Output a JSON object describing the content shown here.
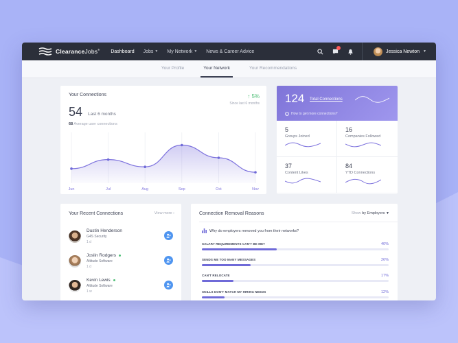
{
  "colors": {
    "accent": "#7c71dd",
    "topbar": "#2b2f3a",
    "success": "#53c07a",
    "action_blue": "#4f95f0",
    "notification": "#ff5a5a"
  },
  "app": {
    "logo_part1": "Clearance",
    "logo_part2": "Jobs",
    "logo_mark": "®",
    "nav": [
      {
        "label": "Dashboard",
        "caret": false
      },
      {
        "label": "Jobs",
        "caret": true
      },
      {
        "label": "My Network",
        "caret": true
      },
      {
        "label": "News & Career Advice",
        "caret": false
      }
    ],
    "user_name": "Jessica Newton",
    "icons": [
      "search-icon",
      "chat-icon",
      "bell-icon",
      "chevron-down-icon"
    ]
  },
  "subnav": {
    "tabs": [
      {
        "label": "Your Profile",
        "active": false
      },
      {
        "label": "Your Network",
        "active": true
      },
      {
        "label": "Your Recommendations",
        "active": false
      }
    ]
  },
  "connections": {
    "title": "Your Connections",
    "change": "5%",
    "change_icon": "arrow-up-icon",
    "since": "Since last 6 months",
    "count": "54",
    "count_label": "Last 6 months",
    "avg_value": "68",
    "avg_label": "Average user connections"
  },
  "chart_data": {
    "type": "line",
    "categories": [
      "Jun",
      "Jul",
      "Aug",
      "Sep",
      "Oct",
      "Nov"
    ],
    "x": [
      "Jun",
      "Jul",
      "Aug",
      "Sep",
      "Oct",
      "Nov"
    ],
    "series": [
      {
        "values": [
          2,
          7,
          3,
          15,
          8,
          0
        ]
      }
    ],
    "ylim": [
      -6,
      22
    ],
    "grid": "vertical",
    "smooth": true,
    "fill": "area"
  },
  "total": {
    "count": "124",
    "label": "Total Connections",
    "hint": "How to get more connections?",
    "hint_icon": "info-icon"
  },
  "stats": [
    {
      "value": "5",
      "label": "Groups Joined"
    },
    {
      "value": "16",
      "label": "Companies Followed"
    },
    {
      "value": "37",
      "label": "Content Likes"
    },
    {
      "value": "84",
      "label": "YTD Connections"
    }
  ],
  "recent": {
    "title": "Your Recent Connections",
    "view_more": "View more",
    "people": [
      {
        "name": "Dustin Henderson",
        "company": "G4S Security",
        "time": "1 d",
        "online": false
      },
      {
        "name": "Joslin Rodgers",
        "company": "Altitude Software",
        "time": "1 d",
        "online": true
      },
      {
        "name": "Kevin Lewis",
        "company": "Altitude Software",
        "time": "1 w",
        "online": true
      }
    ]
  },
  "removal": {
    "title": "Connection Removal Reasons",
    "sort_prefix": "Show",
    "sort_value": "by Employers",
    "question": "Why do employers removed you from their networks?",
    "reasons": [
      {
        "label": "SALARY REQUIREMENTS CAN'T BE MET",
        "pct": "40%",
        "value": 40
      },
      {
        "label": "SENDS ME TOO MANY MESSAGES",
        "pct": "26%",
        "value": 26
      },
      {
        "label": "CAN'T RELOCATE",
        "pct": "17%",
        "value": 17
      },
      {
        "label": "SKILLS DON'T MATCH MY HIRING NEEDS",
        "pct": "12%",
        "value": 12
      }
    ]
  }
}
